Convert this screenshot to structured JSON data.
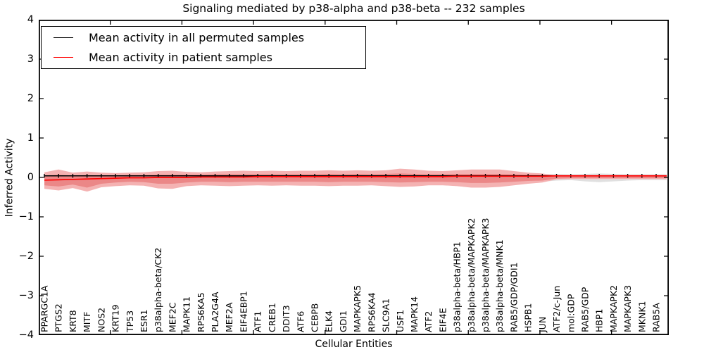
{
  "chart_data": {
    "type": "line",
    "title": "Signaling mediated by p38-alpha and p38-beta -- 232 samples",
    "xlabel": "Cellular Entities",
    "ylabel": "Inferred Activity",
    "ylim": [
      -4,
      4
    ],
    "yticks": [
      4,
      3,
      2,
      1,
      0,
      -1,
      -2,
      -3,
      -4
    ],
    "yticklabels": [
      "4",
      "3",
      "2",
      "1",
      "0",
      "−1",
      "−2",
      "−3",
      "−4"
    ],
    "x_major_tick_every": 5,
    "grid": false,
    "legend_position": "upper left",
    "categories": [
      "PPARGC1A",
      "PTGS2",
      "KRT8",
      "MITF",
      "NOS2",
      "KRT19",
      "TP53",
      "ESR1",
      "p38alpha-beta/CK2",
      "MEF2C",
      "MAPK11",
      "RPS6KA5",
      "PLA2G4A",
      "MEF2A",
      "EIF4EBP1",
      "ATF1",
      "CREB1",
      "DDIT3",
      "ATF6",
      "CEBPB",
      "ELK4",
      "GDI1",
      "MAPKAPK5",
      "RPS6KA4",
      "SLC9A1",
      "USF1",
      "MAPK14",
      "ATF2",
      "EIF4E",
      "p38alpha-beta/HBP1",
      "p38alpha-beta/MAPKAPK2",
      "p38alpha-beta/MAPKAPK3",
      "p38alpha-beta/MNK1",
      "RAB5/GDP/GDI1",
      "HSPB1",
      "JUN",
      "ATF2/c-Jun",
      "mol:GDP",
      "RAB5/GDP",
      "HBP1",
      "MAPKAPK2",
      "MAPKAPK3",
      "MKNK1",
      "RAB5A"
    ],
    "series": [
      {
        "name": "Mean activity in all permuted samples",
        "color": "#000000",
        "values": [
          0.04,
          0.04,
          0.04,
          0.04,
          0.04,
          0.04,
          0.04,
          0.04,
          0.04,
          0.04,
          0.04,
          0.04,
          0.04,
          0.04,
          0.04,
          0.04,
          0.04,
          0.04,
          0.04,
          0.04,
          0.04,
          0.04,
          0.04,
          0.04,
          0.04,
          0.04,
          0.04,
          0.04,
          0.04,
          0.04,
          0.04,
          0.04,
          0.04,
          0.04,
          0.04,
          0.04,
          0.04,
          0.04,
          0.04,
          0.04,
          0.04,
          0.04,
          0.04,
          0.04
        ]
      },
      {
        "name": "Mean activity in patient samples",
        "color": "#ff0000",
        "values": [
          -0.07,
          -0.06,
          -0.05,
          -0.04,
          -0.03,
          -0.02,
          -0.01,
          -0.01,
          0,
          0,
          0,
          0.01,
          0.01,
          0.01,
          0.01,
          0.02,
          0.02,
          0.02,
          0.02,
          0.02,
          0.02,
          0.02,
          0.02,
          0.02,
          0.02,
          0.02,
          0.02,
          0.02,
          0.02,
          0.03,
          0.03,
          0.03,
          0.03,
          0.03,
          0.03,
          0.03,
          0.04,
          0.04,
          0.04,
          0.04,
          0.04,
          0.04,
          0.04,
          0.04
        ]
      }
    ],
    "bands": [
      {
        "name": "permuted-std-band",
        "color": "#e0e0e0",
        "upper": [
          0.1,
          0.1,
          0.09,
          0.09,
          0.08,
          0.08,
          0.08,
          0.08,
          0.08,
          0.08,
          0.08,
          0.08,
          0.08,
          0.08,
          0.08,
          0.08,
          0.08,
          0.08,
          0.08,
          0.08,
          0.08,
          0.08,
          0.08,
          0.08,
          0.08,
          0.08,
          0.08,
          0.08,
          0.08,
          0.08,
          0.08,
          0.08,
          0.08,
          0.08,
          0.09,
          0.09,
          0.09,
          0.08,
          0.09,
          0.1,
          0.09,
          0.08,
          0.08,
          0.08
        ],
        "lower": [
          -0.14,
          -0.13,
          -0.12,
          -0.12,
          -0.1,
          -0.09,
          -0.09,
          -0.09,
          -0.09,
          -0.09,
          -0.08,
          -0.08,
          -0.08,
          -0.08,
          -0.08,
          -0.08,
          -0.08,
          -0.08,
          -0.08,
          -0.08,
          -0.08,
          -0.08,
          -0.08,
          -0.08,
          -0.08,
          -0.09,
          -0.09,
          -0.08,
          -0.08,
          -0.08,
          -0.09,
          -0.09,
          -0.09,
          -0.09,
          -0.1,
          -0.11,
          -0.08,
          -0.07,
          -0.1,
          -0.12,
          -0.1,
          -0.08,
          -0.07,
          -0.07
        ]
      },
      {
        "name": "patient-std-outer-band",
        "color": "#f4b2b2",
        "upper": [
          0.13,
          0.2,
          0.12,
          0.15,
          0.12,
          0.11,
          0.12,
          0.13,
          0.16,
          0.17,
          0.14,
          0.13,
          0.15,
          0.16,
          0.17,
          0.16,
          0.17,
          0.16,
          0.17,
          0.17,
          0.18,
          0.17,
          0.18,
          0.17,
          0.18,
          0.22,
          0.2,
          0.17,
          0.16,
          0.18,
          0.2,
          0.2,
          0.2,
          0.16,
          0.12,
          0.1,
          0.05,
          0.05,
          0.05,
          0.05,
          0.05,
          0.05,
          0.05,
          0.05
        ],
        "lower": [
          -0.29,
          -0.33,
          -0.27,
          -0.36,
          -0.25,
          -0.22,
          -0.2,
          -0.21,
          -0.28,
          -0.29,
          -0.22,
          -0.2,
          -0.21,
          -0.22,
          -0.21,
          -0.2,
          -0.21,
          -0.2,
          -0.21,
          -0.21,
          -0.22,
          -0.21,
          -0.21,
          -0.2,
          -0.22,
          -0.24,
          -0.23,
          -0.2,
          -0.2,
          -0.22,
          -0.26,
          -0.26,
          -0.24,
          -0.2,
          -0.16,
          -0.13,
          -0.05,
          -0.04,
          -0.04,
          -0.04,
          -0.04,
          -0.04,
          -0.04,
          -0.04
        ]
      },
      {
        "name": "patient-std-inner-band",
        "color": "#eb8787",
        "upper": [
          0.05,
          0.07,
          0.05,
          0.06,
          0.05,
          0.05,
          0.06,
          0.06,
          0.07,
          0.07,
          0.07,
          0.07,
          0.08,
          0.08,
          0.08,
          0.08,
          0.08,
          0.08,
          0.08,
          0.08,
          0.09,
          0.08,
          0.09,
          0.08,
          0.09,
          0.1,
          0.09,
          0.08,
          0.08,
          0.09,
          0.09,
          0.09,
          0.09,
          0.08,
          0.07,
          0.06,
          0.04,
          0.04,
          0.04,
          0.04,
          0.04,
          0.04,
          0.04,
          0.04
        ],
        "lower": [
          -0.2,
          -0.23,
          -0.18,
          -0.26,
          -0.16,
          -0.13,
          -0.11,
          -0.12,
          -0.16,
          -0.16,
          -0.13,
          -0.11,
          -0.11,
          -0.12,
          -0.11,
          -0.11,
          -0.11,
          -0.11,
          -0.11,
          -0.11,
          -0.12,
          -0.11,
          -0.11,
          -0.11,
          -0.12,
          -0.13,
          -0.12,
          -0.11,
          -0.11,
          -0.12,
          -0.14,
          -0.14,
          -0.13,
          -0.11,
          -0.09,
          -0.08,
          -0.03,
          -0.02,
          -0.02,
          -0.02,
          -0.02,
          -0.02,
          -0.02,
          -0.02
        ]
      }
    ]
  }
}
